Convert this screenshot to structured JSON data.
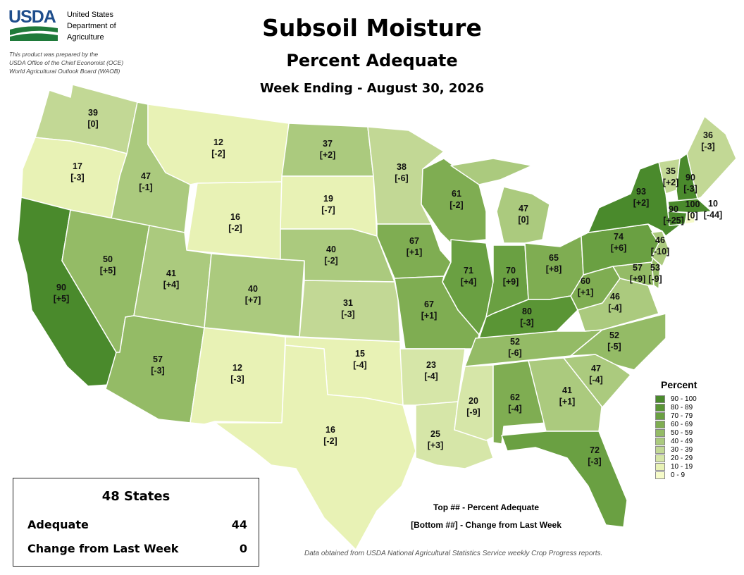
{
  "org": {
    "logo_text": "USDA",
    "lines": [
      "United States",
      "Department of",
      "Agriculture"
    ],
    "prepared": [
      "This product was prepared by the",
      "USDA Office of the Chief Economist (OCE)",
      "World Agricultural Outlook Board (WAOB)"
    ]
  },
  "title": "Subsoil Moisture",
  "subtitle": "Percent Adequate",
  "week": "Week Ending - August 30, 2026",
  "colors": {
    "90-100": "#4a8a2c",
    "80-89": "#5a9535",
    "70-79": "#6aa042",
    "60-69": "#7fad52",
    "50-59": "#94bb66",
    "40-49": "#abca7e",
    "30-39": "#c2d895",
    "20-29": "#d6e6a8",
    "10-19": "#e8f2b5",
    "0-9": "#f6fbc9"
  },
  "legend": {
    "title": "Percent",
    "items": [
      "90 - 100",
      "80 - 89",
      "70 - 79",
      "60 - 69",
      "50 - 59",
      "40 - 49",
      "30 - 39",
      "20 - 29",
      "10 - 19",
      "0 - 9"
    ]
  },
  "states": [
    {
      "state": "Washington",
      "adequate": "39",
      "change": "[0]"
    },
    {
      "state": "Oregon",
      "adequate": "17",
      "change": "[-3]"
    },
    {
      "state": "California",
      "adequate": "90",
      "change": "[+5]"
    },
    {
      "state": "Idaho",
      "adequate": "47",
      "change": "[-1]"
    },
    {
      "state": "Nevada",
      "adequate": "50",
      "change": "[+5]"
    },
    {
      "state": "Montana",
      "adequate": "12",
      "change": "[-2]"
    },
    {
      "state": "Wyoming",
      "adequate": "16",
      "change": "[-2]"
    },
    {
      "state": "Utah",
      "adequate": "41",
      "change": "[+4]"
    },
    {
      "state": "Arizona",
      "adequate": "57",
      "change": "[-3]"
    },
    {
      "state": "Colorado",
      "adequate": "40",
      "change": "[+7]"
    },
    {
      "state": "New Mexico",
      "adequate": "12",
      "change": "[-3]"
    },
    {
      "state": "North Dakota",
      "adequate": "37",
      "change": "[+2]"
    },
    {
      "state": "South Dakota",
      "adequate": "19",
      "change": "[-7]"
    },
    {
      "state": "Nebraska",
      "adequate": "40",
      "change": "[-2]"
    },
    {
      "state": "Kansas",
      "adequate": "31",
      "change": "[-3]"
    },
    {
      "state": "Oklahoma",
      "adequate": "15",
      "change": "[-4]"
    },
    {
      "state": "Texas",
      "adequate": "16",
      "change": "[-2]"
    },
    {
      "state": "Minnesota",
      "adequate": "38",
      "change": "[-6]"
    },
    {
      "state": "Iowa",
      "adequate": "67",
      "change": "[+1]"
    },
    {
      "state": "Missouri",
      "adequate": "67",
      "change": "[+1]"
    },
    {
      "state": "Arkansas",
      "adequate": "23",
      "change": "[-4]"
    },
    {
      "state": "Louisiana",
      "adequate": "25",
      "change": "[+3]"
    },
    {
      "state": "Wisconsin",
      "adequate": "61",
      "change": "[-2]"
    },
    {
      "state": "Illinois",
      "adequate": "71",
      "change": "[+4]"
    },
    {
      "state": "Michigan",
      "adequate": "47",
      "change": "[0]"
    },
    {
      "state": "Indiana",
      "adequate": "70",
      "change": "[+9]"
    },
    {
      "state": "Ohio",
      "adequate": "65",
      "change": "[+8]"
    },
    {
      "state": "Kentucky",
      "adequate": "80",
      "change": "[-3]"
    },
    {
      "state": "Tennessee",
      "adequate": "52",
      "change": "[-6]"
    },
    {
      "state": "Mississippi",
      "adequate": "20",
      "change": "[-9]"
    },
    {
      "state": "Alabama",
      "adequate": "62",
      "change": "[-4]"
    },
    {
      "state": "Georgia",
      "adequate": "41",
      "change": "[+1]"
    },
    {
      "state": "Florida",
      "adequate": "72",
      "change": "[-3]"
    },
    {
      "state": "South Carolina",
      "adequate": "47",
      "change": "[-4]"
    },
    {
      "state": "North Carolina",
      "adequate": "52",
      "change": "[-5]"
    },
    {
      "state": "Virginia",
      "adequate": "46",
      "change": "[-4]"
    },
    {
      "state": "West Virginia",
      "adequate": "60",
      "change": "[+1]"
    },
    {
      "state": "Maryland",
      "adequate": "57",
      "change": "[+9]"
    },
    {
      "state": "Delaware",
      "adequate": "53",
      "change": "[-9]"
    },
    {
      "state": "Pennsylvania",
      "adequate": "74",
      "change": "[+6]"
    },
    {
      "state": "New Jersey",
      "adequate": "46",
      "change": "[-10]"
    },
    {
      "state": "New York",
      "adequate": "93",
      "change": "[+2]"
    },
    {
      "state": "Vermont",
      "adequate": "35",
      "change": "[+2]"
    },
    {
      "state": "New Hampshire",
      "adequate": "90",
      "change": "[-3]"
    },
    {
      "state": "Maine",
      "adequate": "36",
      "change": "[-3]"
    },
    {
      "state": "Massachusetts",
      "adequate": "100",
      "change": "[0]"
    },
    {
      "state": "Connecticut",
      "adequate": "90",
      "change": "[+25]"
    },
    {
      "state": "Rhode Island",
      "adequate": "10",
      "change": "[-44]"
    }
  ],
  "notes": {
    "top": "Top ## - Percent Adequate",
    "bottom": "[Bottom ##] - Change from Last Week"
  },
  "summary": {
    "title": "48 States",
    "adequate_label": "Adequate",
    "adequate_value": "44",
    "change_label": "Change from Last Week",
    "change_value": "0"
  },
  "source": "Data obtained from USDA National Agricultural Statistics Service weekly Crop Progress reports."
}
